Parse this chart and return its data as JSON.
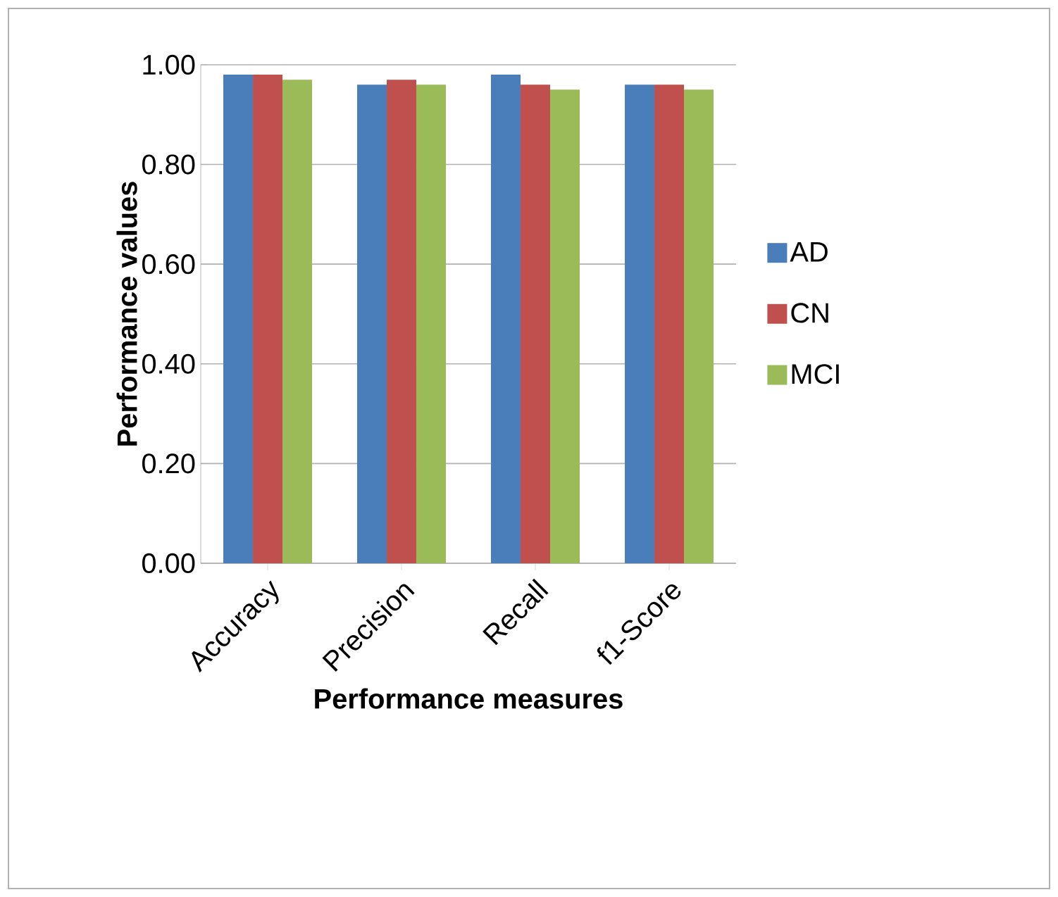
{
  "chart_data": {
    "type": "bar",
    "xlabel": "Performance measures",
    "ylabel": "Performance values",
    "categories": [
      "Accuracy",
      "Precision",
      "Recall",
      "f1-Score"
    ],
    "series": [
      {
        "name": "AD",
        "color": "#4a7ebb",
        "values": [
          0.98,
          0.96,
          0.98,
          0.96
        ]
      },
      {
        "name": "CN",
        "color": "#c0504d",
        "values": [
          0.98,
          0.97,
          0.96,
          0.96
        ]
      },
      {
        "name": "MCI",
        "color": "#9bbb59",
        "values": [
          0.97,
          0.96,
          0.95,
          0.95
        ]
      }
    ],
    "ylim": [
      0,
      1
    ],
    "yticks": [
      {
        "value": 0,
        "label": "0.00"
      },
      {
        "value": 0.2,
        "label": "0.20"
      },
      {
        "value": 0.4,
        "label": "0.40"
      },
      {
        "value": 0.6,
        "label": "0.60"
      },
      {
        "value": 0.8,
        "label": "0.80"
      },
      {
        "value": 1,
        "label": "1.00"
      }
    ],
    "grid": "y",
    "legend": "right"
  }
}
